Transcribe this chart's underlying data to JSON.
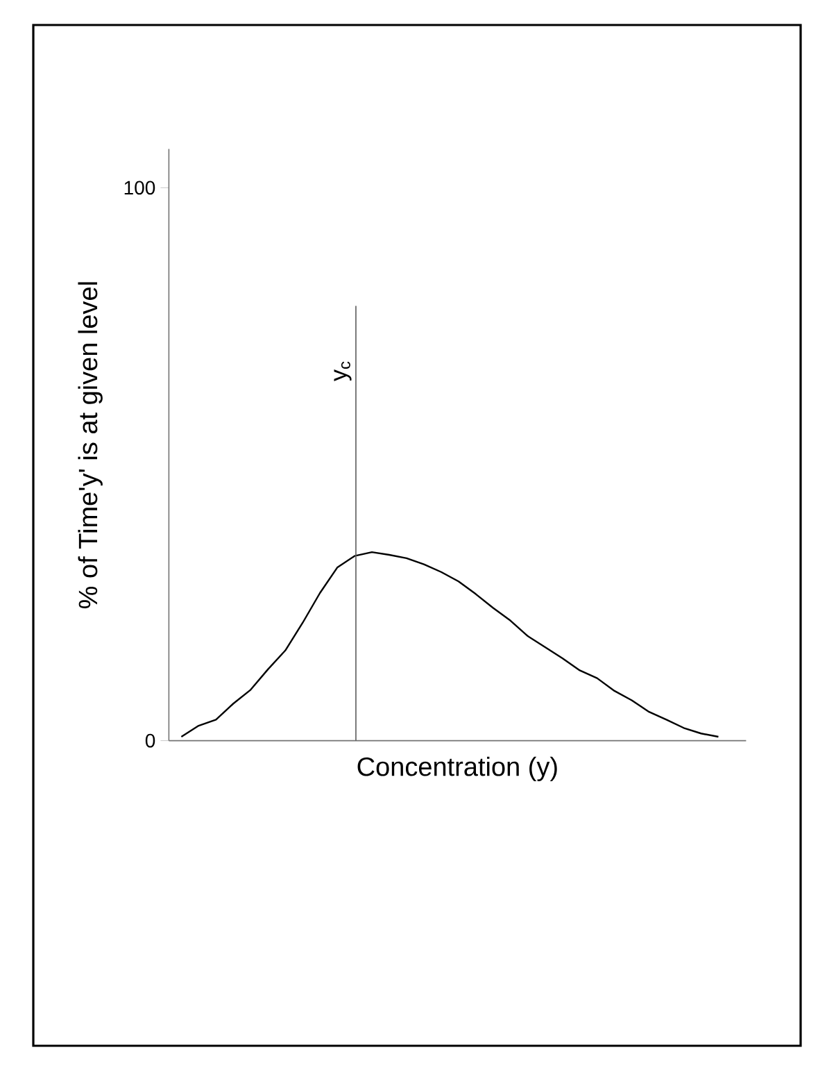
{
  "chart_data": {
    "type": "line",
    "xlabel": "Concentration (y)",
    "ylabel": "% of Time'y' is at given level",
    "categories": [
      null,
      null,
      null,
      null,
      null,
      null,
      null,
      null,
      null,
      null,
      null,
      null,
      null,
      null,
      null,
      null,
      null,
      null,
      null,
      null,
      null,
      null,
      null,
      null,
      null,
      null,
      null,
      null,
      null,
      null,
      null,
      null
    ],
    "series": [
      {
        "color": "#000000",
        "values": [
          0.7,
          2.7,
          3.8,
          6.7,
          9.2,
          12.9,
          16.3,
          21.3,
          26.7,
          31.3,
          33.4,
          34.1,
          33.6,
          33.0,
          31.9,
          30.5,
          28.8,
          26.5,
          24.0,
          21.7,
          18.9,
          16.9,
          14.9,
          12.7,
          11.3,
          9.0,
          7.3,
          5.2,
          3.8,
          2.3,
          1.3,
          0.7
        ]
      }
    ],
    "ylim": [
      0,
      107
    ],
    "yticks": [
      0,
      100
    ],
    "tick_labels": "y",
    "grid": false,
    "marker": "none",
    "line_style": "solid",
    "annotations": [
      "y$_{c}$"
    ]
  }
}
